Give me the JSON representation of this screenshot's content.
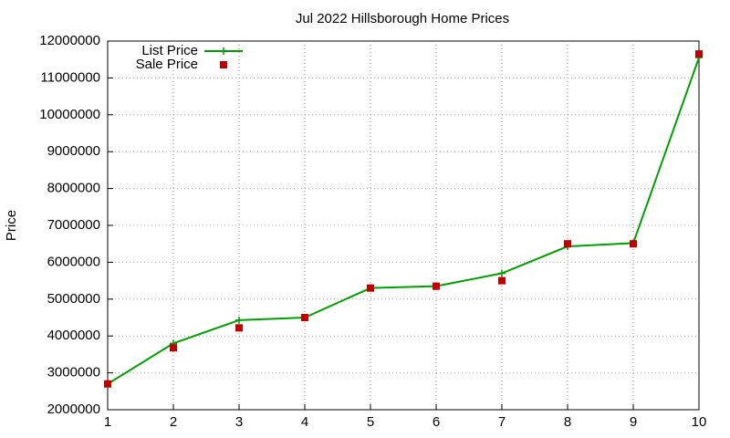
{
  "chart_data": {
    "type": "line",
    "title": "Jul 2022 Hillsborough Home Prices",
    "y_label": "Price",
    "x": [
      1,
      2,
      3,
      4,
      5,
      6,
      7,
      8,
      9,
      10
    ],
    "series": [
      {
        "name": "List Price",
        "color": "#00a000",
        "style": "line-plus",
        "values": [
          2700000,
          3800000,
          4430000,
          4500000,
          5300000,
          5350000,
          5700000,
          6430000,
          6520000,
          11550000
        ]
      },
      {
        "name": "Sale Price",
        "color": "#c00000",
        "style": "square",
        "values": [
          2700000,
          3680000,
          4220000,
          4500000,
          5300000,
          5350000,
          5500000,
          6500000,
          6500000,
          11650000
        ]
      }
    ],
    "xlim": [
      1,
      10
    ],
    "xticks": [
      1,
      2,
      3,
      4,
      5,
      6,
      7,
      8,
      9,
      10
    ],
    "ylim": [
      2000000,
      12000000
    ],
    "yticks": [
      2000000,
      3000000,
      4000000,
      5000000,
      6000000,
      7000000,
      8000000,
      9000000,
      10000000,
      11000000,
      12000000
    ],
    "grid": true,
    "legend": "top-left"
  }
}
